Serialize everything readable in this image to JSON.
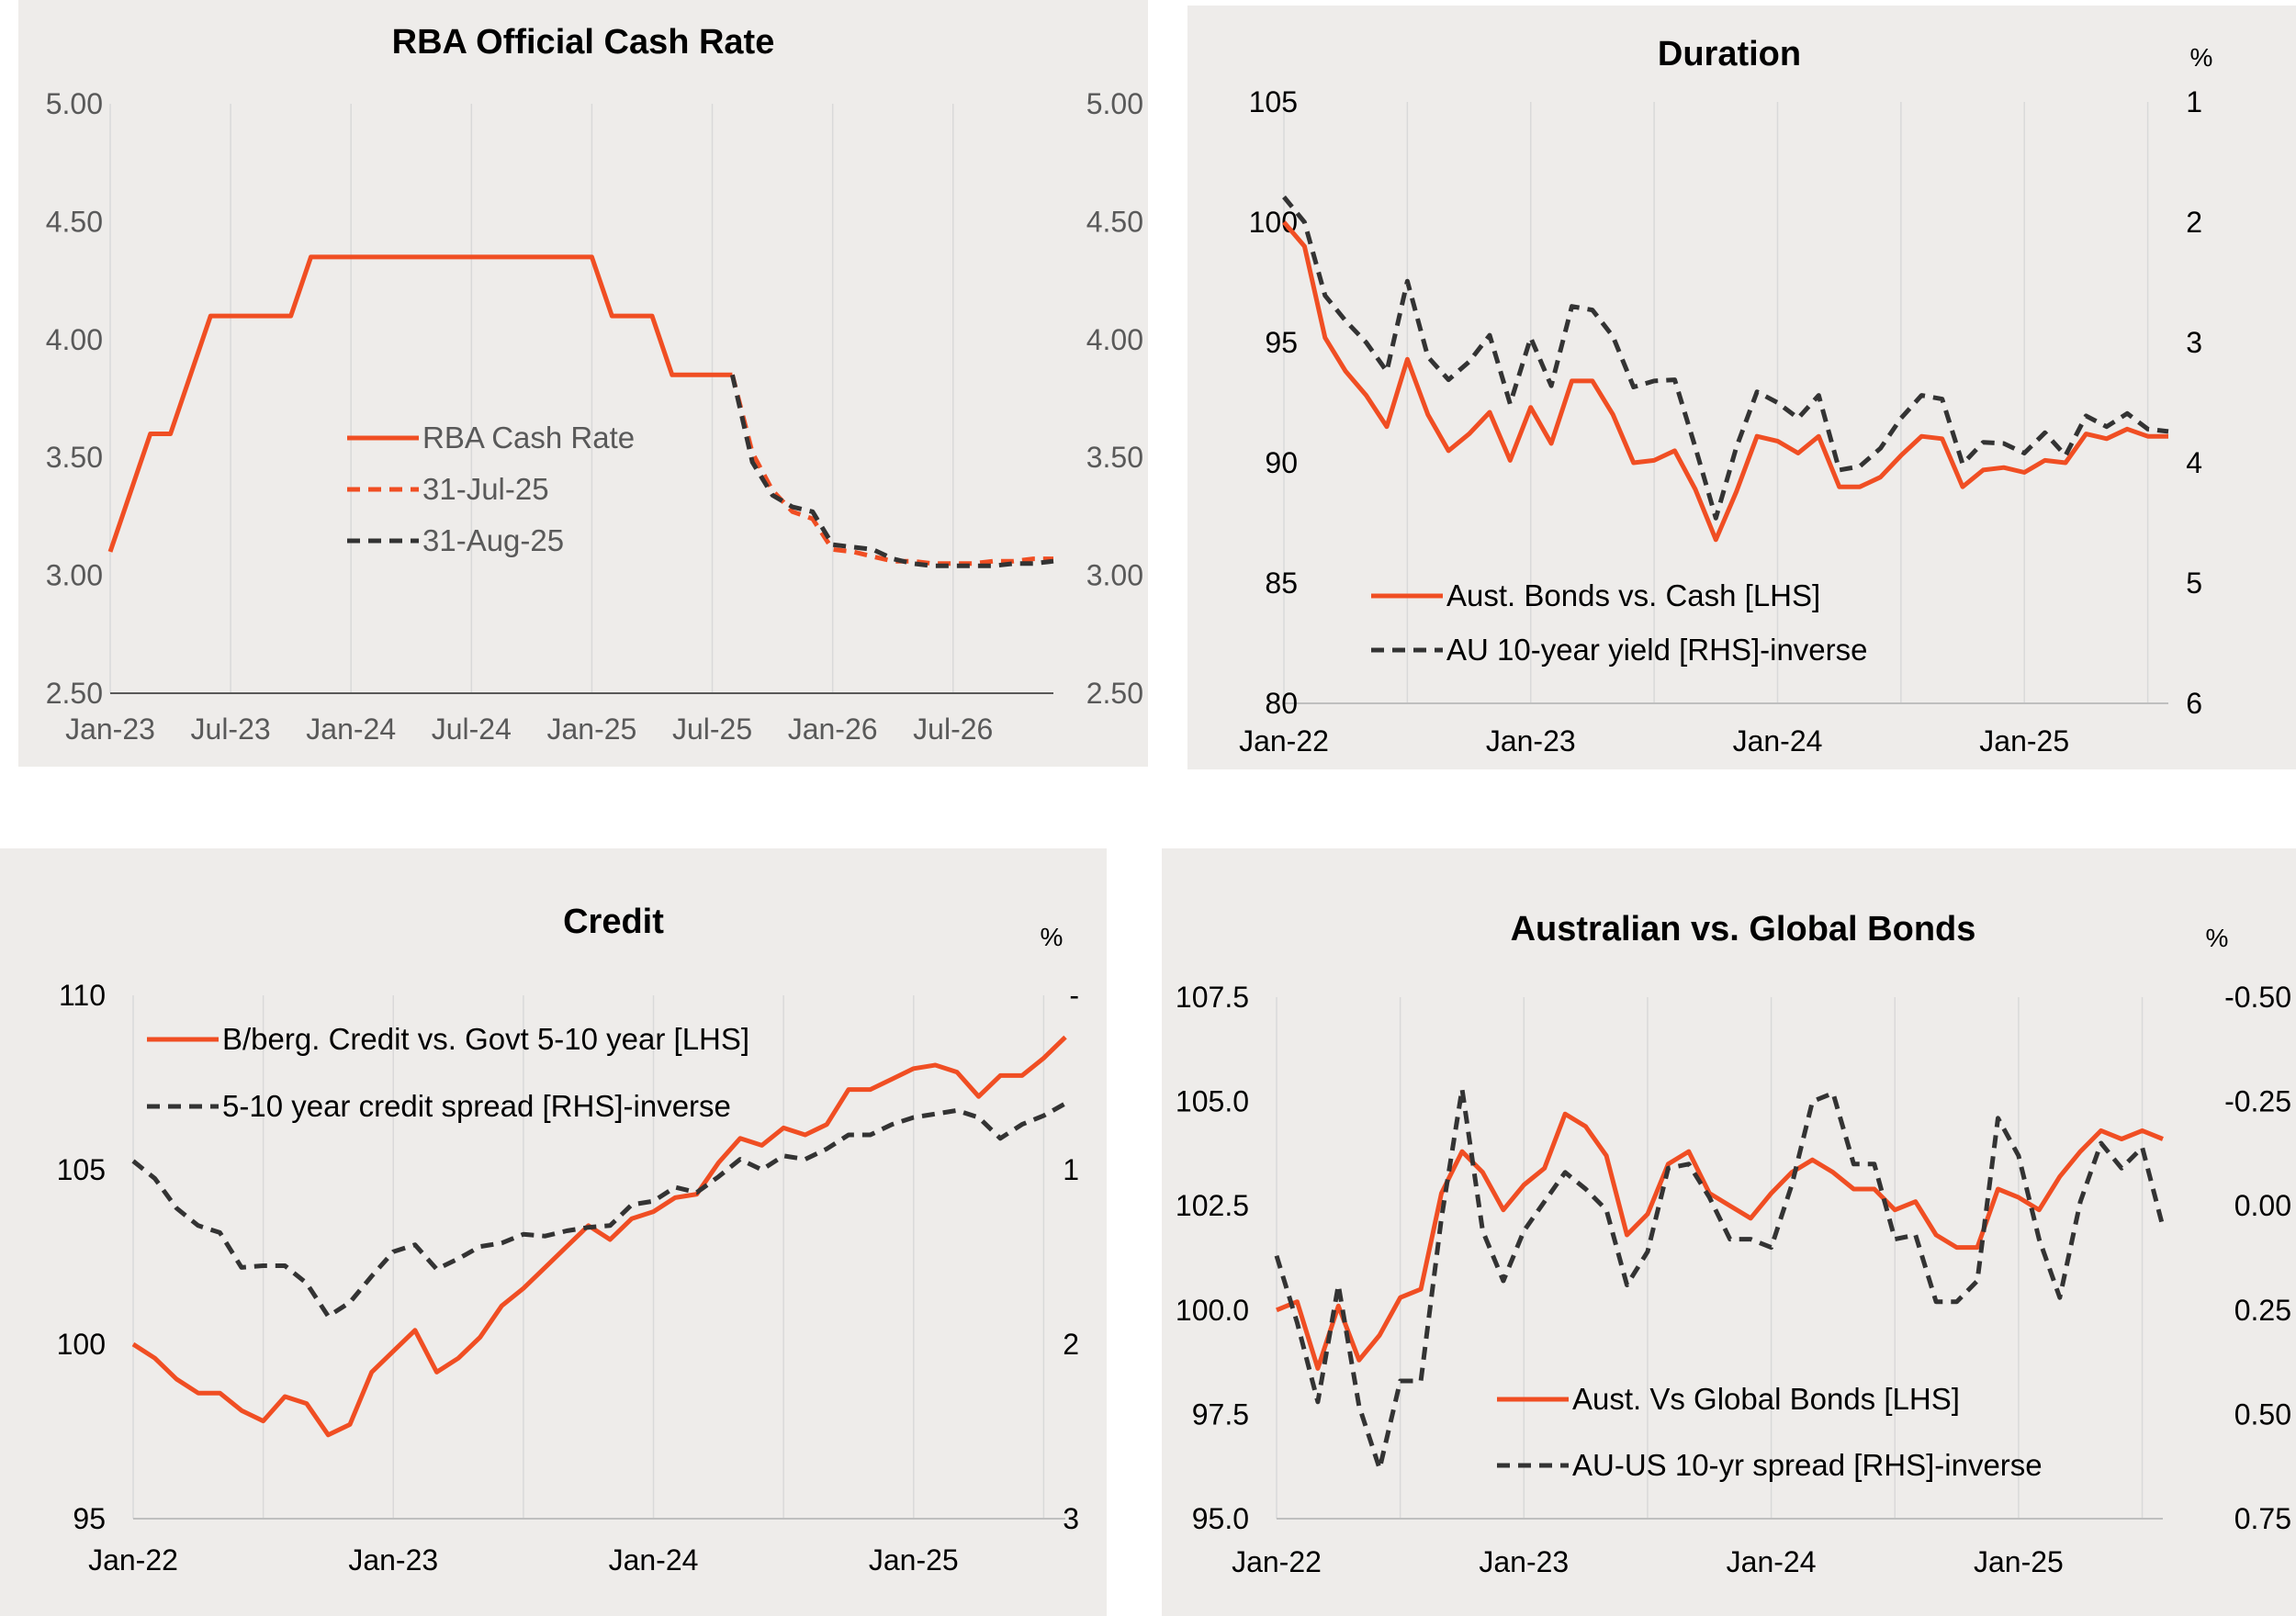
{
  "chart_data": [
    {
      "type": "line",
      "title": "RBA Official Cash Rate",
      "left_axis": {
        "ticks": [
          "5.00",
          "4.50",
          "4.00",
          "3.50",
          "3.00",
          "2.50"
        ],
        "range": [
          2.5,
          5.0
        ]
      },
      "right_axis": {
        "ticks": [
          "5.00",
          "4.50",
          "4.00",
          "3.50",
          "3.00",
          "2.50"
        ],
        "range": [
          2.5,
          5.0
        ]
      },
      "x_tick_labels": [
        "Jan-23",
        "Jul-23",
        "Jan-24",
        "Jul-24",
        "Jan-25",
        "Jul-25",
        "Jan-26",
        "Jul-26"
      ],
      "x_range": [
        0,
        47
      ],
      "grid": "vertical",
      "legend_placement": "center",
      "legend": [
        "RBA Cash Rate",
        "31-Jul-25",
        "31-Aug-25"
      ],
      "series": [
        {
          "name": "RBA Cash Rate",
          "axis": "left",
          "style": "solid",
          "color": "#f04e23",
          "points": [
            [
              0,
              3.1
            ],
            [
              2,
              3.6
            ],
            [
              3,
              3.6
            ],
            [
              5,
              4.1
            ],
            [
              9,
              4.1
            ],
            [
              10,
              4.35
            ],
            [
              24,
              4.35
            ],
            [
              25,
              4.1
            ],
            [
              27,
              4.1
            ],
            [
              28,
              3.85
            ],
            [
              31,
              3.85
            ]
          ]
        },
        {
          "name": "31-Jul-25",
          "axis": "left",
          "style": "dashed",
          "color": "#f04e23",
          "points": [
            [
              31,
              3.85
            ],
            [
              32,
              3.52
            ],
            [
              33,
              3.36
            ],
            [
              34,
              3.27
            ],
            [
              35,
              3.24
            ],
            [
              36,
              3.11
            ],
            [
              37,
              3.1
            ],
            [
              38,
              3.08
            ],
            [
              39,
              3.06
            ],
            [
              40,
              3.06
            ],
            [
              41,
              3.05
            ],
            [
              42,
              3.05
            ],
            [
              43,
              3.05
            ],
            [
              44,
              3.06
            ],
            [
              45,
              3.06
            ],
            [
              46,
              3.07
            ],
            [
              47,
              3.07
            ]
          ]
        },
        {
          "name": "31-Aug-25",
          "axis": "left",
          "style": "dashed",
          "color": "#333333",
          "points": [
            [
              31,
              3.85
            ],
            [
              32,
              3.48
            ],
            [
              33,
              3.34
            ],
            [
              34,
              3.29
            ],
            [
              35,
              3.27
            ],
            [
              36,
              3.13
            ],
            [
              37,
              3.12
            ],
            [
              38,
              3.11
            ],
            [
              39,
              3.07
            ],
            [
              40,
              3.05
            ],
            [
              41,
              3.04
            ],
            [
              42,
              3.04
            ],
            [
              43,
              3.04
            ],
            [
              44,
              3.04
            ],
            [
              45,
              3.05
            ],
            [
              46,
              3.05
            ],
            [
              47,
              3.06
            ]
          ]
        }
      ]
    },
    {
      "type": "line",
      "title": "Duration",
      "left_axis": {
        "ticks": [
          "105",
          "100",
          "95",
          "90",
          "85",
          "80"
        ],
        "range": [
          80,
          105
        ]
      },
      "right_axis": {
        "unit": "%",
        "ticks": [
          "1",
          "2",
          "3",
          "4",
          "5",
          "6"
        ],
        "range": [
          1,
          6
        ],
        "inverted": true
      },
      "x_tick_labels": [
        "Jan-22",
        "Jan-23",
        "Jan-24",
        "Jan-25"
      ],
      "x_range": [
        0,
        43
      ],
      "grid": "vertical",
      "legend_placement": "bottom-left",
      "legend": [
        "Aust. Bonds vs. Cash [LHS]",
        "AU 10-year yield [RHS]-inverse"
      ],
      "series": [
        {
          "name": "Aust. Bonds vs. Cash [LHS]",
          "axis": "left",
          "style": "solid",
          "color": "#f04e23",
          "values": [
            100.0,
            99.0,
            95.2,
            93.8,
            92.8,
            91.5,
            94.3,
            92.0,
            90.5,
            91.2,
            92.1,
            90.1,
            92.3,
            90.8,
            93.4,
            93.4,
            92.0,
            90.0,
            90.1,
            90.5,
            88.9,
            86.8,
            88.8,
            91.1,
            90.9,
            90.4,
            91.1,
            89.0,
            89.0,
            89.4,
            90.3,
            91.1,
            91.0,
            89.0,
            89.7,
            89.8,
            89.6,
            90.1,
            90.0,
            91.2,
            91.0,
            91.4,
            91.1,
            91.1
          ]
        },
        {
          "name": "AU 10-year yield [RHS]-inverse",
          "axis": "right",
          "style": "dashed",
          "color": "#333333",
          "values": [
            1.79,
            2.0,
            2.61,
            2.82,
            3.0,
            3.24,
            2.49,
            3.12,
            3.31,
            3.16,
            2.94,
            3.51,
            2.96,
            3.36,
            2.7,
            2.73,
            2.95,
            3.37,
            3.32,
            3.31,
            3.87,
            4.46,
            3.87,
            3.41,
            3.5,
            3.63,
            3.44,
            4.06,
            4.03,
            3.88,
            3.63,
            3.44,
            3.47,
            4.01,
            3.83,
            3.84,
            3.92,
            3.75,
            3.94,
            3.61,
            3.7,
            3.59,
            3.72,
            3.74
          ]
        }
      ]
    },
    {
      "type": "line",
      "title": "Credit",
      "left_axis": {
        "ticks": [
          "110",
          "105",
          "100",
          "95"
        ],
        "range": [
          95,
          110
        ]
      },
      "right_axis": {
        "unit": "%",
        "ticks": [
          "-",
          "1",
          "2",
          "3"
        ],
        "range": [
          0,
          3
        ],
        "inverted": true
      },
      "x_tick_labels": [
        "Jan-22",
        "Jan-23",
        "Jan-24",
        "Jan-25"
      ],
      "x_range": [
        0,
        43
      ],
      "grid": "vertical",
      "legend_placement": "top-left",
      "legend": [
        "B/berg. Credit vs. Govt 5-10 year [LHS]",
        "5-10 year credit spread [RHS]-inverse"
      ],
      "series": [
        {
          "name": "B/berg. Credit vs. Govt 5-10 year [LHS]",
          "axis": "left",
          "style": "solid",
          "color": "#f04e23",
          "values": [
            100.0,
            99.6,
            99.0,
            98.6,
            98.6,
            98.1,
            97.8,
            98.5,
            98.3,
            97.4,
            97.7,
            99.2,
            99.8,
            100.4,
            99.2,
            99.6,
            100.2,
            101.1,
            101.6,
            102.2,
            102.8,
            103.4,
            103.0,
            103.6,
            103.8,
            104.2,
            104.3,
            105.2,
            105.9,
            105.7,
            106.2,
            106.0,
            106.3,
            107.3,
            107.3,
            107.6,
            107.9,
            108.0,
            107.8,
            107.1,
            107.7,
            107.7,
            108.2,
            108.8
          ]
        },
        {
          "name": "5-10 year credit spread [RHS]-inverse",
          "axis": "right",
          "style": "dashed",
          "color": "#333333",
          "values": [
            0.95,
            1.05,
            1.22,
            1.32,
            1.36,
            1.56,
            1.55,
            1.55,
            1.65,
            1.84,
            1.76,
            1.61,
            1.47,
            1.43,
            1.57,
            1.51,
            1.44,
            1.42,
            1.37,
            1.38,
            1.35,
            1.33,
            1.32,
            1.2,
            1.18,
            1.1,
            1.13,
            1.04,
            0.94,
            1.0,
            0.92,
            0.94,
            0.88,
            0.8,
            0.8,
            0.74,
            0.7,
            0.68,
            0.66,
            0.7,
            0.82,
            0.74,
            0.69,
            0.62
          ]
        }
      ]
    },
    {
      "type": "line",
      "title": "Australian vs. Global Bonds",
      "left_axis": {
        "ticks": [
          "107.5",
          "105.0",
          "102.5",
          "100.0",
          "97.5",
          "95.0"
        ],
        "range": [
          95,
          107.5
        ]
      },
      "right_axis": {
        "unit": "%",
        "ticks": [
          "-0.50",
          "-0.25",
          "0.00",
          "0.25",
          "0.50",
          "0.75"
        ],
        "range": [
          -0.5,
          0.75
        ],
        "inverted": true
      },
      "x_tick_labels": [
        "Jan-22",
        "Jan-23",
        "Jan-24",
        "Jan-25"
      ],
      "x_range": [
        0,
        43
      ],
      "grid": "vertical",
      "legend_placement": "bottom-center",
      "legend": [
        "Aust. Vs Global Bonds [LHS]",
        "AU-US 10-yr spread [RHS]-inverse"
      ],
      "series": [
        {
          "name": "Aust. Vs Global Bonds [LHS]",
          "axis": "left",
          "style": "solid",
          "color": "#f04e23",
          "values": [
            100.0,
            100.2,
            98.6,
            100.1,
            98.8,
            99.4,
            100.3,
            100.5,
            102.8,
            103.8,
            103.3,
            102.4,
            103.0,
            103.4,
            104.7,
            104.4,
            103.7,
            101.8,
            102.3,
            103.5,
            103.8,
            102.8,
            102.5,
            102.2,
            102.8,
            103.3,
            103.6,
            103.3,
            102.9,
            102.9,
            102.4,
            102.6,
            101.8,
            101.5,
            101.5,
            102.9,
            102.7,
            102.4,
            103.2,
            103.8,
            104.3,
            104.1,
            104.3,
            104.1
          ]
        },
        {
          "name": "AU-US 10-yr spread [RHS]-inverse",
          "axis": "right",
          "style": "dashed",
          "color": "#333333",
          "values": [
            0.12,
            0.28,
            0.47,
            0.19,
            0.48,
            0.63,
            0.42,
            0.42,
            0.03,
            -0.28,
            0.06,
            0.18,
            0.06,
            -0.01,
            -0.08,
            -0.04,
            0.01,
            0.19,
            0.11,
            -0.09,
            -0.1,
            -0.02,
            0.08,
            0.08,
            0.1,
            -0.05,
            -0.25,
            -0.27,
            -0.1,
            -0.1,
            0.08,
            0.07,
            0.23,
            0.23,
            0.18,
            -0.21,
            -0.12,
            0.08,
            0.22,
            -0.01,
            -0.15,
            -0.09,
            -0.14,
            0.05
          ]
        }
      ]
    }
  ]
}
